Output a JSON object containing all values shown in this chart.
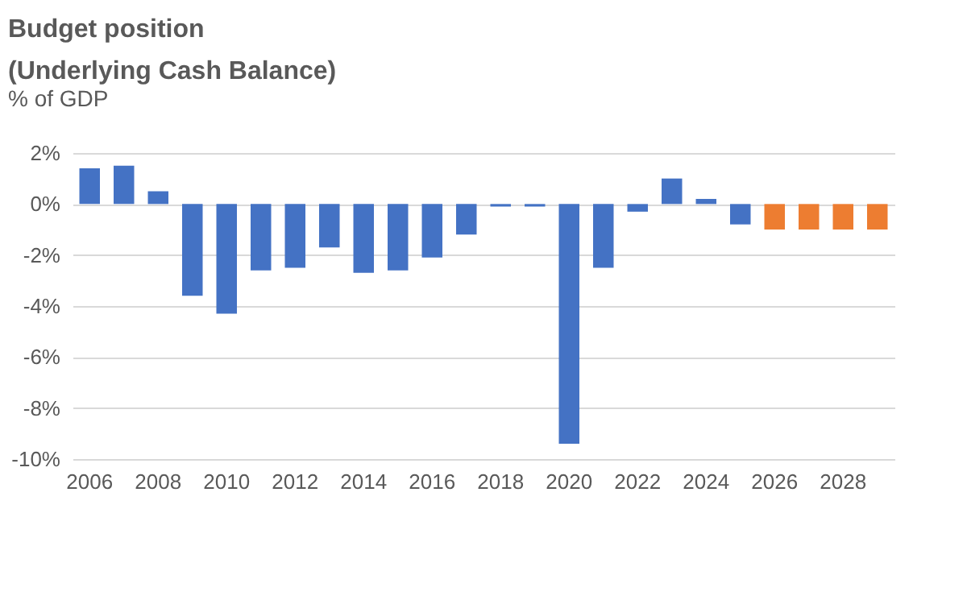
{
  "chart_data": {
    "type": "bar",
    "title": "Budget position\n(Underlying Cash Balance)",
    "subtitle": "% of GDP",
    "categories": [
      "2006",
      null,
      "2008",
      null,
      "2010",
      null,
      "2012",
      null,
      "2014",
      null,
      "2016",
      null,
      "2018",
      null,
      "2020",
      null,
      "2022",
      null,
      "2024",
      null,
      "2026",
      null,
      "2028",
      null
    ],
    "values": [
      1.4,
      1.5,
      0.5,
      -3.6,
      -4.3,
      -2.6,
      -2.5,
      -1.7,
      -2.7,
      -2.6,
      -2.1,
      -1.2,
      -0.1,
      -0.1,
      -9.4,
      -2.5,
      -0.3,
      1.0,
      0.2,
      -0.8,
      -1.0,
      -1.0,
      -1.0,
      -1.0
    ],
    "colors": [
      "#4472c4",
      "#4472c4",
      "#4472c4",
      "#4472c4",
      "#4472c4",
      "#4472c4",
      "#4472c4",
      "#4472c4",
      "#4472c4",
      "#4472c4",
      "#4472c4",
      "#4472c4",
      "#4472c4",
      "#4472c4",
      "#4472c4",
      "#4472c4",
      "#4472c4",
      "#4472c4",
      "#4472c4",
      "#4472c4",
      "#ed7d31",
      "#ed7d31",
      "#ed7d31",
      "#ed7d31"
    ],
    "ylim": [
      -10,
      2
    ],
    "yticks": [
      {
        "value": -10,
        "label": "-10%"
      },
      {
        "value": -8,
        "label": "-8%"
      },
      {
        "value": -6,
        "label": "-6%"
      },
      {
        "value": -4,
        "label": "-4%"
      },
      {
        "value": -2,
        "label": "-2%"
      },
      {
        "value": 0,
        "label": "0%"
      },
      {
        "value": 2,
        "label": "2%"
      }
    ],
    "grid": "y"
  }
}
